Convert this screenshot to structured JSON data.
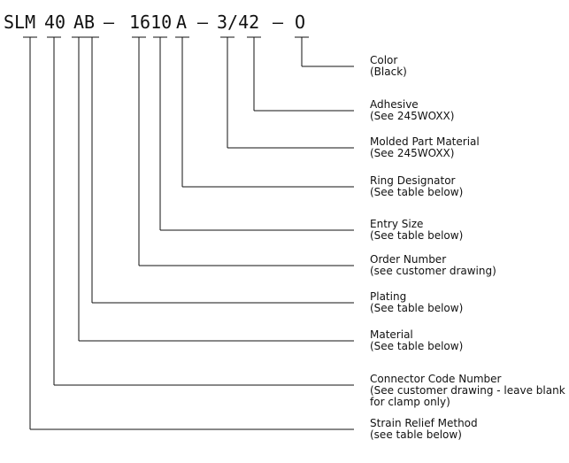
{
  "part_number": {
    "segments": [
      "SLM",
      "40",
      "AB",
      "–",
      "1610",
      "A",
      "–",
      "3/42",
      "–",
      "O"
    ]
  },
  "fields": [
    {
      "title": "Color",
      "lines": [
        "(Black)"
      ]
    },
    {
      "title": "Adhesive",
      "lines": [
        "(See 245WOXX)"
      ]
    },
    {
      "title": "Molded Part Material",
      "lines": [
        "(See 245WOXX)"
      ]
    },
    {
      "title": "Ring Designator",
      "lines": [
        "(See table below)"
      ]
    },
    {
      "title": "Entry Size",
      "lines": [
        "(See table below)"
      ]
    },
    {
      "title": "Order Number",
      "lines": [
        "(see customer drawing)"
      ]
    },
    {
      "title": "Plating",
      "lines": [
        "(See table below)"
      ]
    },
    {
      "title": "Material",
      "lines": [
        "(See table below)"
      ]
    },
    {
      "title": "Connector Code Number",
      "lines": [
        "(See customer drawing - leave blank",
        "for clamp only)"
      ]
    },
    {
      "title": "Strain Relief Method",
      "lines": [
        "(see table below)"
      ]
    }
  ]
}
